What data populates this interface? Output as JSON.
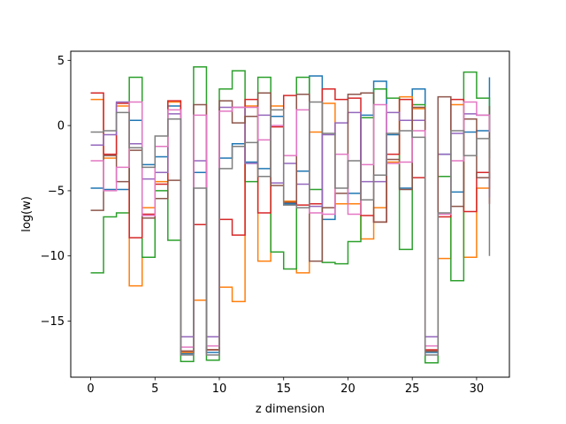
{
  "chart_data": {
    "type": "line",
    "step": "post",
    "xlabel": "z dimension",
    "ylabel": "log(w)",
    "xlim": [
      -1.55,
      32.55
    ],
    "ylim": [
      -19.3,
      5.7
    ],
    "xticks": [
      0,
      5,
      10,
      15,
      20,
      25,
      30
    ],
    "yticks": [
      5,
      0,
      -5,
      -10,
      -15
    ],
    "ytick_labels": [
      "5",
      "0",
      "−5",
      "−10",
      "−15"
    ],
    "grid": false,
    "legend": "none",
    "series": [
      {
        "color": "#1f77b4",
        "values": [
          -4.8,
          -4.9,
          -4.9,
          0.4,
          -3.0,
          -2.4,
          1.5,
          -17.5,
          -3.6,
          -17.4,
          -2.5,
          -1.4,
          -2.8,
          -3.3,
          0.7,
          -6.0,
          -3.5,
          3.8,
          -7.2,
          -6.0,
          -5.2,
          0.8,
          3.4,
          -0.7,
          -4.8,
          2.8,
          -17.4,
          -2.2,
          -5.1,
          -0.5,
          -0.4,
          3.7
        ]
      },
      {
        "color": "#ff7f0e",
        "values": [
          2.0,
          -2.5,
          1.5,
          -12.3,
          -6.3,
          -4.3,
          1.8,
          -17.4,
          -13.4,
          -17.2,
          -12.4,
          -13.5,
          1.5,
          -10.4,
          1.5,
          -5.8,
          -11.3,
          -0.5,
          1.7,
          -6.0,
          -6.0,
          -8.7,
          -6.3,
          -2.8,
          2.2,
          1.3,
          -17.3,
          -10.2,
          1.6,
          -10.1,
          -4.8,
          -1.8
        ]
      },
      {
        "color": "#2ca02c",
        "values": [
          -11.3,
          -7.0,
          -6.7,
          3.7,
          -10.1,
          -5.0,
          -8.8,
          -18.1,
          4.5,
          -18.0,
          2.8,
          4.2,
          -4.3,
          3.7,
          -9.7,
          -11.0,
          3.7,
          -4.9,
          -10.5,
          -10.6,
          -8.9,
          0.6,
          2.8,
          2.1,
          -9.5,
          1.6,
          -18.2,
          -3.9,
          -11.9,
          4.1,
          2.1,
          -2.5
        ]
      },
      {
        "color": "#d62728",
        "values": [
          2.5,
          -2.2,
          1.7,
          -8.6,
          -6.8,
          -4.5,
          1.9,
          -17.3,
          -7.6,
          -17.2,
          -7.2,
          -8.4,
          2.0,
          -6.7,
          -0.1,
          2.3,
          -6.1,
          -6.0,
          2.8,
          2.0,
          2.1,
          -6.9,
          -7.4,
          -2.2,
          2.0,
          -4.0,
          -17.2,
          -7.0,
          2.0,
          -6.6,
          -3.6,
          -6.0
        ]
      },
      {
        "color": "#9467bd",
        "values": [
          -1.5,
          -0.7,
          1.8,
          -1.4,
          -4.1,
          -3.6,
          0.9,
          -16.2,
          -2.7,
          -16.2,
          1.4,
          1.4,
          -2.9,
          0.8,
          -4.4,
          -2.9,
          -4.5,
          -6.2,
          -0.7,
          0.2,
          1.0,
          -4.3,
          -4.3,
          1.0,
          0.4,
          0.4,
          -16.2,
          -2.2,
          -0.6,
          0.9,
          0.8,
          -5.5
        ]
      },
      {
        "color": "#8c564b",
        "values": [
          -6.5,
          -2.3,
          -4.3,
          -1.9,
          -7.1,
          -5.6,
          -4.2,
          -17.3,
          1.6,
          -17.2,
          1.9,
          0.2,
          0.7,
          2.5,
          -4.6,
          -5.9,
          2.4,
          -10.4,
          -6.3,
          -5.2,
          2.4,
          2.5,
          -7.4,
          -2.6,
          -4.9,
          1.4,
          -17.3,
          2.2,
          -6.2,
          0.5,
          -4.0,
          1.5
        ]
      },
      {
        "color": "#e377c2",
        "values": [
          -2.7,
          -5.0,
          -3.2,
          1.8,
          -6.9,
          -1.6,
          1.2,
          -17.0,
          0.8,
          -16.9,
          1.1,
          1.4,
          1.4,
          -1.1,
          0.0,
          -2.3,
          1.2,
          -6.7,
          -6.8,
          -2.2,
          -6.8,
          -3.0,
          1.6,
          -2.9,
          -2.8,
          -0.4,
          -16.9,
          -6.8,
          -2.7,
          1.8,
          0.8,
          -0.5
        ]
      },
      {
        "color": "#7f7f7f",
        "values": [
          -0.5,
          -0.4,
          1.0,
          -1.7,
          -3.2,
          -0.8,
          0.5,
          -17.6,
          -4.8,
          -17.6,
          -3.3,
          -1.6,
          -1.3,
          -3.9,
          1.2,
          -6.1,
          -6.3,
          1.8,
          -0.6,
          -4.8,
          -2.7,
          -5.7,
          -3.8,
          -0.6,
          -0.4,
          -0.9,
          -17.6,
          -6.7,
          -0.4,
          -2.3,
          -1.0,
          -10.0
        ]
      }
    ]
  }
}
